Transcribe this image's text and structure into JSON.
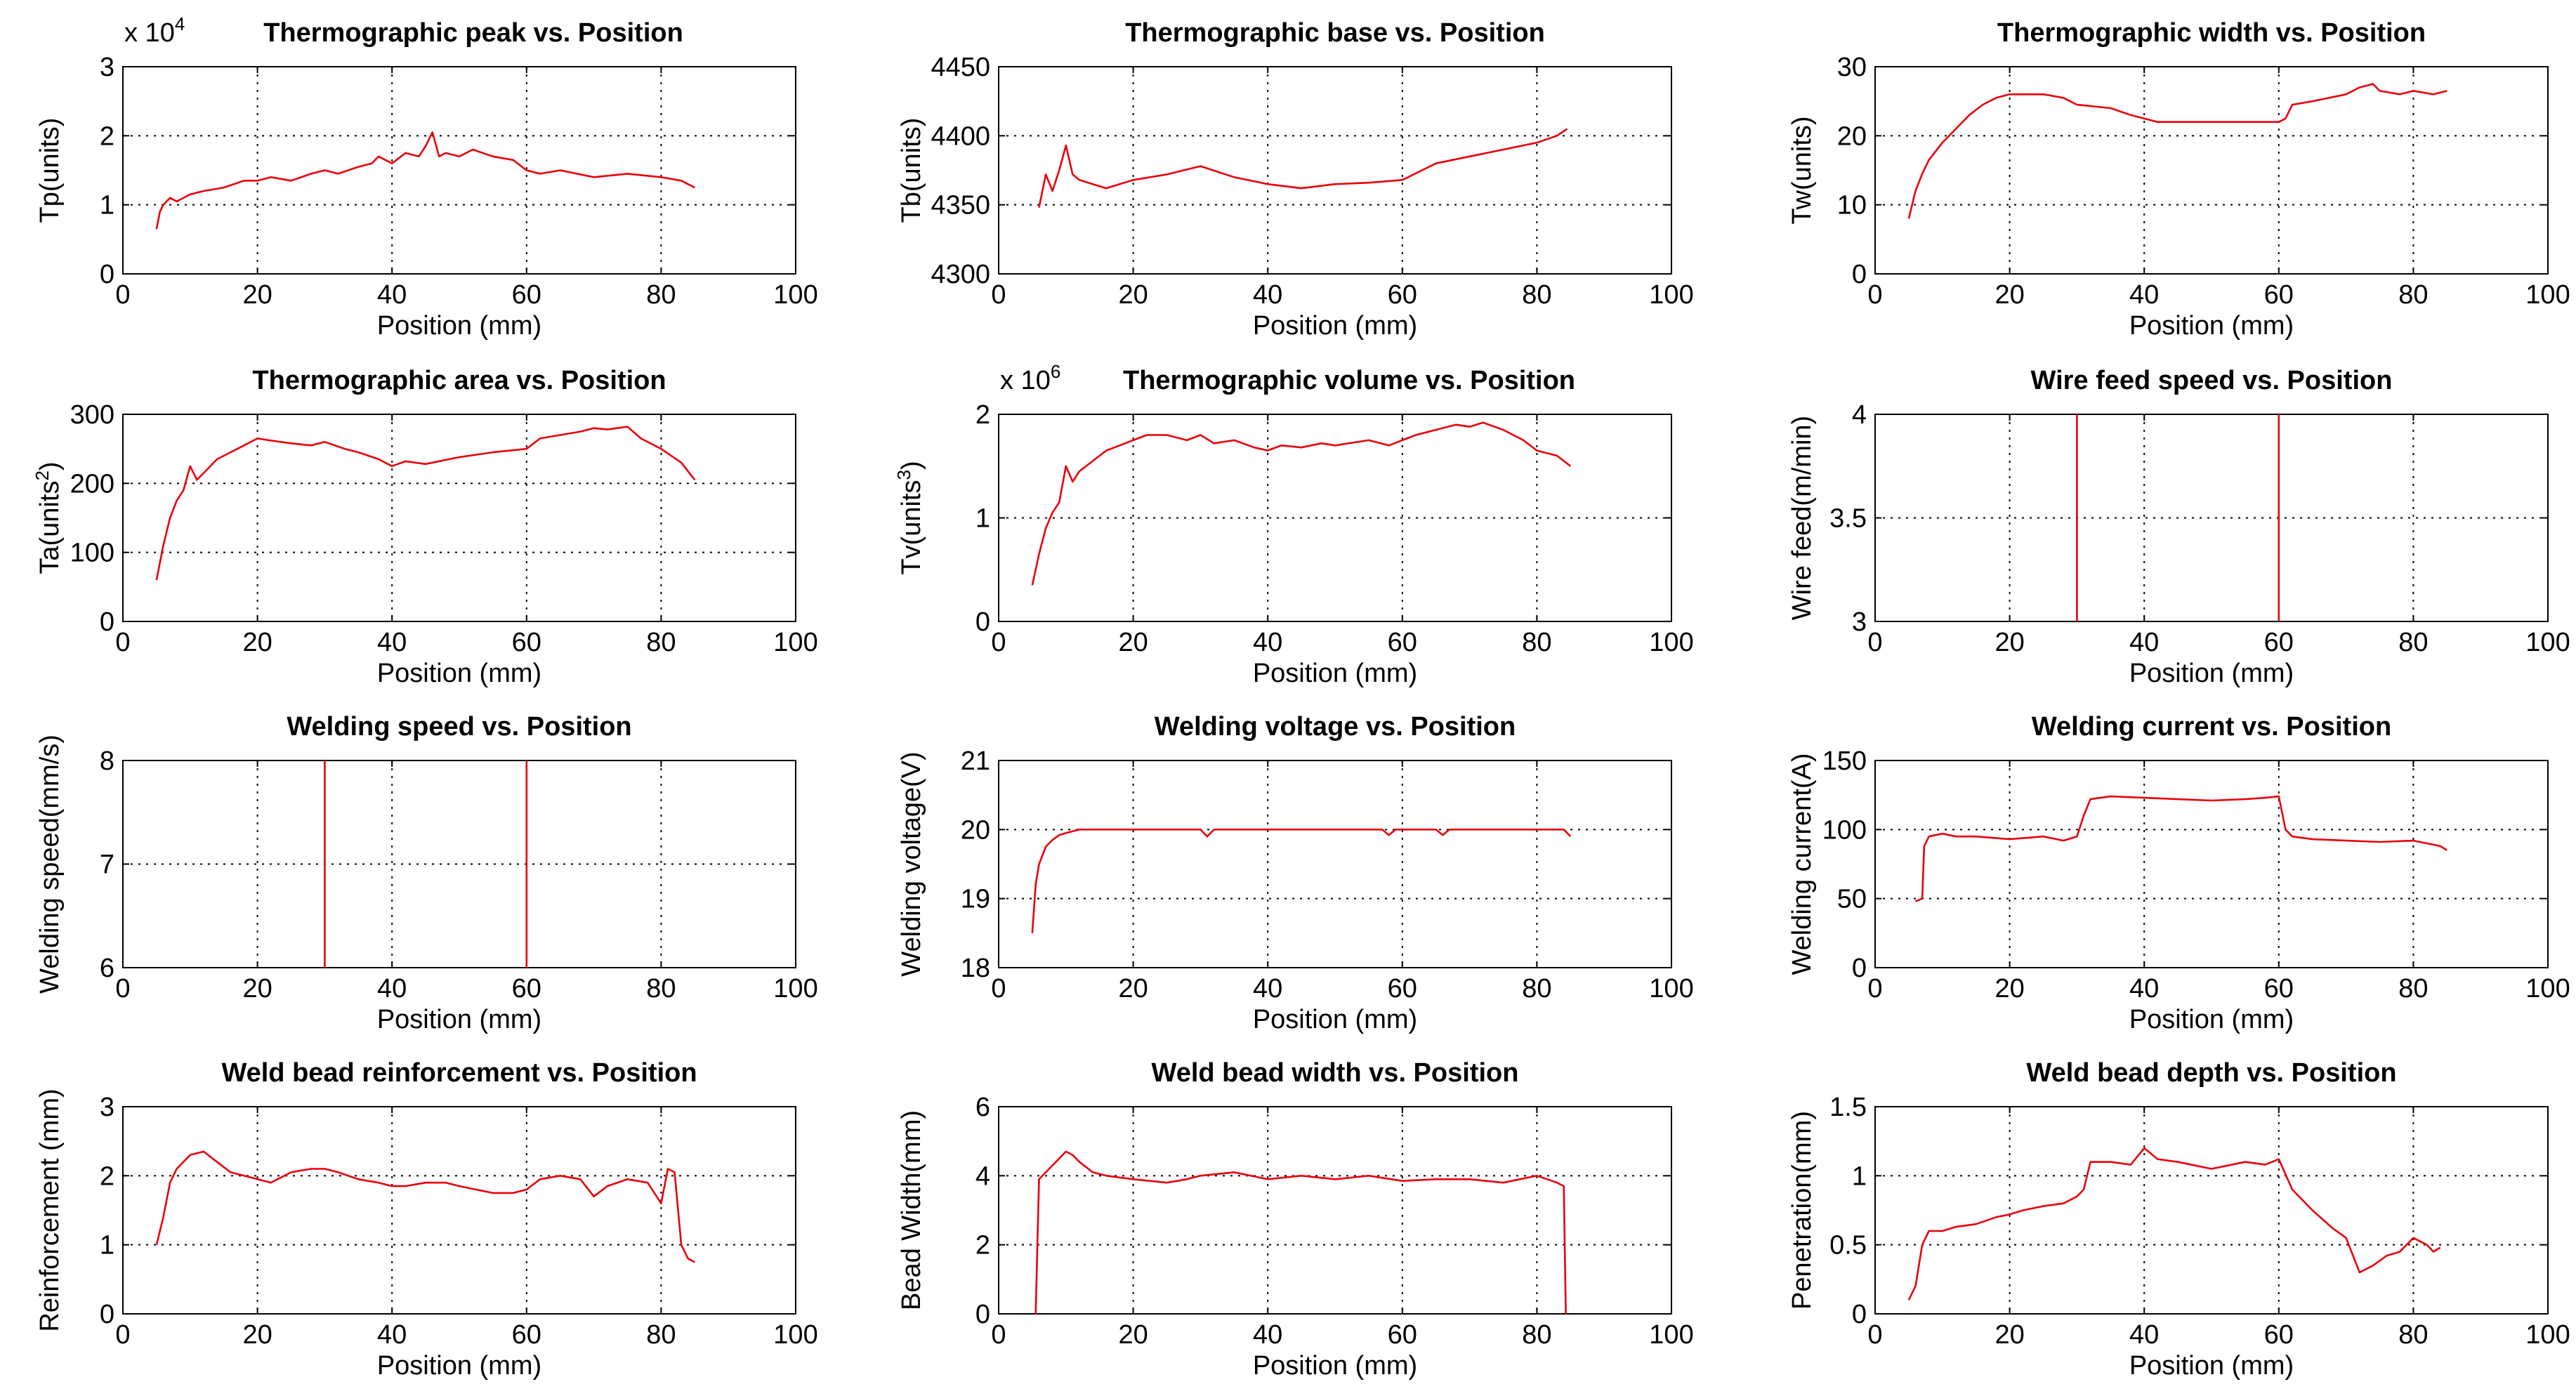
{
  "chart_data": [
    {
      "type": "line",
      "title": "Thermographic peak vs. Position",
      "xlabel": "Position (mm)",
      "ylabel": "Tp(units)",
      "xlim": [
        0,
        100
      ],
      "ylim": [
        0,
        3
      ],
      "xticks": [
        "0",
        "20",
        "40",
        "60",
        "80",
        "100"
      ],
      "yticks": [
        "0",
        "1",
        "2",
        "3"
      ],
      "multiplier": {
        "base": "x 10",
        "exp": "4"
      },
      "grid": true,
      "series": [
        {
          "color": "#e8000b",
          "x": [
            5,
            5.5,
            6,
            7,
            8,
            10,
            12,
            15,
            18,
            20,
            22,
            25,
            28,
            30,
            32,
            35,
            37,
            38,
            40,
            42,
            44,
            45,
            46,
            47,
            48,
            50,
            52,
            55,
            58,
            60,
            62,
            65,
            70,
            75,
            80,
            83,
            85
          ],
          "y": [
            0.65,
            0.9,
            1.0,
            1.1,
            1.05,
            1.15,
            1.2,
            1.25,
            1.35,
            1.35,
            1.4,
            1.35,
            1.45,
            1.5,
            1.45,
            1.55,
            1.6,
            1.7,
            1.6,
            1.75,
            1.7,
            1.85,
            2.05,
            1.7,
            1.75,
            1.7,
            1.8,
            1.7,
            1.65,
            1.5,
            1.45,
            1.5,
            1.4,
            1.45,
            1.4,
            1.35,
            1.25
          ]
        }
      ]
    },
    {
      "type": "line",
      "title": "Thermographic base vs. Position",
      "xlabel": "Position (mm)",
      "ylabel": "Tb(units)",
      "xlim": [
        0,
        100
      ],
      "ylim": [
        4300,
        4450
      ],
      "xticks": [
        "0",
        "20",
        "40",
        "60",
        "80",
        "100"
      ],
      "yticks": [
        "4300",
        "4350",
        "4400",
        "4450"
      ],
      "grid": true,
      "series": [
        {
          "color": "#e8000b",
          "x": [
            6,
            7,
            8,
            9,
            10,
            11,
            12,
            14,
            16,
            20,
            25,
            30,
            35,
            40,
            45,
            50,
            55,
            60,
            65,
            70,
            75,
            80,
            83,
            84.5
          ],
          "y": [
            4348,
            4372,
            4360,
            4375,
            4393,
            4372,
            4368,
            4365,
            4362,
            4368,
            4372,
            4378,
            4370,
            4365,
            4362,
            4365,
            4366,
            4368,
            4380,
            4385,
            4390,
            4395,
            4400,
            4405
          ]
        }
      ]
    },
    {
      "type": "line",
      "title": "Thermographic width vs. Position",
      "xlabel": "Position (mm)",
      "ylabel": "Tw(units)",
      "xlim": [
        0,
        100
      ],
      "ylim": [
        0,
        30
      ],
      "xticks": [
        "0",
        "20",
        "40",
        "60",
        "80",
        "100"
      ],
      "yticks": [
        "0",
        "10",
        "20",
        "30"
      ],
      "grid": true,
      "series": [
        {
          "color": "#e8000b",
          "x": [
            5,
            6,
            7,
            8,
            10,
            12,
            14,
            16,
            18,
            20,
            25,
            28,
            30,
            35,
            38,
            40,
            42,
            45,
            50,
            55,
            60,
            61,
            62,
            65,
            70,
            72,
            74,
            75,
            78,
            80,
            83,
            85
          ],
          "y": [
            8,
            12,
            14.5,
            16.5,
            19,
            21,
            23,
            24.5,
            25.5,
            26,
            26,
            25.5,
            24.5,
            24,
            23,
            22.5,
            22,
            22,
            22,
            22,
            22,
            22.5,
            24.5,
            25,
            26,
            27,
            27.5,
            26.5,
            26,
            26.5,
            26,
            26.5
          ]
        }
      ]
    },
    {
      "type": "line",
      "title": "Thermographic area vs. Position",
      "xlabel": "Position (mm)",
      "ylabel": "Ta(units",
      "ylabel_sup": "2",
      "ylabel_end": ")",
      "xlim": [
        0,
        100
      ],
      "ylim": [
        0,
        300
      ],
      "xticks": [
        "0",
        "20",
        "40",
        "60",
        "80",
        "100"
      ],
      "yticks": [
        "0",
        "100",
        "200",
        "300"
      ],
      "grid": true,
      "series": [
        {
          "color": "#e8000b",
          "x": [
            5,
            6,
            7,
            8,
            9,
            10,
            11,
            12,
            14,
            16,
            18,
            20,
            22,
            25,
            28,
            30,
            33,
            35,
            38,
            40,
            42,
            45,
            50,
            55,
            60,
            62,
            65,
            68,
            70,
            72,
            75,
            77,
            80,
            83,
            85
          ],
          "y": [
            60,
            110,
            150,
            175,
            190,
            225,
            205,
            215,
            235,
            245,
            255,
            265,
            262,
            258,
            255,
            260,
            250,
            245,
            235,
            225,
            232,
            228,
            238,
            245,
            250,
            265,
            270,
            275,
            280,
            278,
            282,
            265,
            250,
            230,
            205
          ]
        }
      ]
    },
    {
      "type": "line",
      "title": "Thermographic volume vs. Position",
      "xlabel": "Position (mm)",
      "ylabel": "Tv(units",
      "ylabel_sup": "3",
      "ylabel_end": ")",
      "xlim": [
        0,
        100
      ],
      "ylim": [
        0,
        2
      ],
      "xticks": [
        "0",
        "20",
        "40",
        "60",
        "80",
        "100"
      ],
      "yticks": [
        "0",
        "1",
        "2"
      ],
      "multiplier": {
        "base": "x 10",
        "exp": "6"
      },
      "grid": true,
      "series": [
        {
          "color": "#e8000b",
          "x": [
            5,
            6,
            7,
            8,
            9,
            10,
            11,
            12,
            14,
            16,
            18,
            20,
            22,
            25,
            28,
            30,
            32,
            35,
            38,
            40,
            42,
            45,
            48,
            50,
            55,
            58,
            60,
            62,
            65,
            68,
            70,
            72,
            75,
            78,
            80,
            83,
            85
          ],
          "y": [
            0.35,
            0.65,
            0.9,
            1.05,
            1.15,
            1.5,
            1.35,
            1.45,
            1.55,
            1.65,
            1.7,
            1.75,
            1.8,
            1.8,
            1.75,
            1.8,
            1.72,
            1.75,
            1.68,
            1.65,
            1.7,
            1.68,
            1.72,
            1.7,
            1.75,
            1.7,
            1.75,
            1.8,
            1.85,
            1.9,
            1.88,
            1.92,
            1.85,
            1.75,
            1.65,
            1.6,
            1.5
          ]
        }
      ]
    },
    {
      "type": "line",
      "title": "Wire feed speed vs. Position",
      "xlabel": "Position (mm)",
      "ylabel": "Wire feed(m/min)",
      "xlim": [
        0,
        100
      ],
      "ylim": [
        3,
        4
      ],
      "xticks": [
        "0",
        "20",
        "40",
        "60",
        "80",
        "100"
      ],
      "yticks": [
        "3",
        "3.5",
        "4"
      ],
      "grid": true,
      "vlines": [
        30,
        60
      ],
      "series": [
        {
          "color": "#e8000b",
          "x": [],
          "y": []
        }
      ]
    },
    {
      "type": "line",
      "title": "Welding speed vs. Position",
      "xlabel": "Position (mm)",
      "ylabel": "Welding speed(mm/s)",
      "xlim": [
        0,
        100
      ],
      "ylim": [
        6,
        8
      ],
      "xticks": [
        "0",
        "20",
        "40",
        "60",
        "80",
        "100"
      ],
      "yticks": [
        "6",
        "7",
        "8"
      ],
      "grid": true,
      "vlines": [
        30,
        60
      ],
      "series": [
        {
          "color": "#e8000b",
          "x": [],
          "y": []
        }
      ]
    },
    {
      "type": "line",
      "title": "Welding voltage vs. Position",
      "xlabel": "Position (mm)",
      "ylabel": "Welding voltage(V)",
      "xlim": [
        0,
        100
      ],
      "ylim": [
        18,
        21
      ],
      "xticks": [
        "0",
        "20",
        "40",
        "60",
        "80",
        "100"
      ],
      "yticks": [
        "18",
        "19",
        "20",
        "21"
      ],
      "grid": true,
      "series": [
        {
          "color": "#e8000b",
          "x": [
            5,
            5.5,
            6,
            7,
            8,
            9,
            10,
            12,
            15,
            20,
            30,
            31,
            32,
            40,
            45,
            50,
            57,
            58,
            59,
            65,
            66,
            67,
            75,
            84,
            85
          ],
          "y": [
            18.5,
            19.2,
            19.5,
            19.75,
            19.85,
            19.92,
            19.95,
            20,
            20,
            20,
            20,
            19.9,
            20,
            20,
            20,
            20,
            20,
            19.92,
            20,
            20,
            19.92,
            20,
            20,
            20,
            19.9
          ]
        }
      ]
    },
    {
      "type": "line",
      "title": "Welding current vs. Position",
      "xlabel": "Position (mm)",
      "ylabel": "Welding current(A)",
      "xlim": [
        0,
        100
      ],
      "ylim": [
        0,
        150
      ],
      "xticks": [
        "0",
        "20",
        "40",
        "60",
        "80",
        "100"
      ],
      "yticks": [
        "0",
        "50",
        "100",
        "150"
      ],
      "grid": true,
      "series": [
        {
          "color": "#e8000b",
          "x": [
            6,
            7,
            7.3,
            8,
            10,
            12,
            15,
            20,
            25,
            28,
            30,
            31,
            32,
            35,
            40,
            45,
            50,
            55,
            58,
            60,
            61,
            62,
            65,
            70,
            75,
            80,
            84,
            85
          ],
          "y": [
            48,
            50,
            88,
            95,
            97,
            95,
            95,
            93,
            95,
            92,
            95,
            110,
            122,
            124,
            123,
            122,
            121,
            122,
            123,
            124,
            100,
            95,
            93,
            92,
            91,
            92,
            88,
            85
          ]
        }
      ]
    },
    {
      "type": "line",
      "title": "Weld bead reinforcement vs. Position",
      "xlabel": "Position (mm)",
      "ylabel": "Reinforcement (mm)",
      "xlim": [
        0,
        100
      ],
      "ylim": [
        0,
        3
      ],
      "xticks": [
        "0",
        "20",
        "40",
        "60",
        "80",
        "100"
      ],
      "yticks": [
        "0",
        "1",
        "2",
        "3"
      ],
      "grid": true,
      "series": [
        {
          "color": "#e8000b",
          "x": [
            5,
            6,
            7,
            8,
            10,
            12,
            14,
            16,
            18,
            20,
            22,
            25,
            28,
            30,
            32,
            35,
            38,
            40,
            42,
            45,
            48,
            50,
            55,
            58,
            60,
            62,
            65,
            68,
            70,
            72,
            75,
            78,
            80,
            81,
            82,
            83,
            84,
            85
          ],
          "y": [
            1.0,
            1.4,
            1.9,
            2.1,
            2.3,
            2.35,
            2.2,
            2.05,
            2.0,
            1.95,
            1.9,
            2.05,
            2.1,
            2.1,
            2.05,
            1.95,
            1.9,
            1.85,
            1.85,
            1.9,
            1.9,
            1.85,
            1.75,
            1.75,
            1.8,
            1.95,
            2.0,
            1.95,
            1.7,
            1.85,
            1.95,
            1.9,
            1.6,
            2.1,
            2.05,
            1.0,
            0.8,
            0.75
          ]
        }
      ]
    },
    {
      "type": "line",
      "title": "Weld bead width vs. Position",
      "xlabel": "Position (mm)",
      "ylabel": "Bead Width(mm)",
      "xlim": [
        0,
        100
      ],
      "ylim": [
        0,
        6
      ],
      "xticks": [
        "0",
        "20",
        "40",
        "60",
        "80",
        "100"
      ],
      "yticks": [
        "0",
        "2",
        "4",
        "6"
      ],
      "grid": true,
      "series": [
        {
          "color": "#e8000b",
          "x": [
            5.5,
            6,
            7,
            8,
            9,
            10,
            11,
            12,
            14,
            16,
            20,
            25,
            28,
            30,
            35,
            40,
            45,
            50,
            55,
            60,
            65,
            70,
            75,
            80,
            83,
            84,
            84.3
          ],
          "y": [
            0,
            3.9,
            4.1,
            4.3,
            4.5,
            4.7,
            4.6,
            4.4,
            4.1,
            4.0,
            3.9,
            3.8,
            3.9,
            4.0,
            4.1,
            3.9,
            4.0,
            3.9,
            4.0,
            3.85,
            3.9,
            3.9,
            3.8,
            4.0,
            3.8,
            3.7,
            0
          ]
        }
      ]
    },
    {
      "type": "line",
      "title": "Weld bead depth  vs. Position",
      "xlabel": "Position (mm)",
      "ylabel": "Penetration(mm)",
      "xlim": [
        0,
        100
      ],
      "ylim": [
        0,
        1.5
      ],
      "xticks": [
        "0",
        "20",
        "40",
        "60",
        "80",
        "100"
      ],
      "yticks": [
        "0",
        "0.5",
        "1",
        "1.5"
      ],
      "grid": true,
      "series": [
        {
          "color": "#e8000b",
          "x": [
            5,
            6,
            7,
            8,
            10,
            12,
            15,
            18,
            20,
            22,
            25,
            28,
            30,
            31,
            32,
            35,
            38,
            40,
            42,
            45,
            50,
            55,
            58,
            60,
            62,
            65,
            68,
            70,
            72,
            74,
            76,
            78,
            80,
            82,
            83,
            84
          ],
          "y": [
            0.1,
            0.2,
            0.5,
            0.6,
            0.6,
            0.63,
            0.65,
            0.7,
            0.72,
            0.75,
            0.78,
            0.8,
            0.85,
            0.9,
            1.1,
            1.1,
            1.08,
            1.2,
            1.12,
            1.1,
            1.05,
            1.1,
            1.08,
            1.12,
            0.9,
            0.75,
            0.62,
            0.55,
            0.3,
            0.35,
            0.42,
            0.45,
            0.55,
            0.5,
            0.45,
            0.48
          ]
        }
      ]
    }
  ]
}
